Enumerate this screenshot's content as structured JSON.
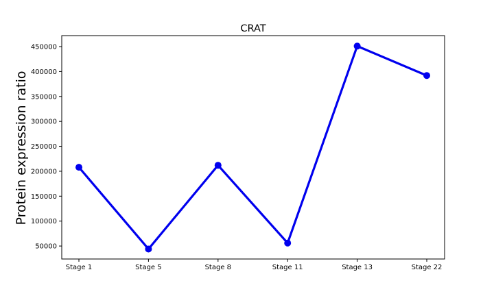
{
  "chart_data": {
    "type": "line",
    "title": "CRAT",
    "xlabel": "",
    "ylabel": "Protein expression ratio",
    "categories": [
      "Stage 1",
      "Stage 5",
      "Stage 8",
      "Stage 11",
      "Stage 13",
      "Stage 22"
    ],
    "series": [
      {
        "values": [
          208000,
          44000,
          212000,
          56000,
          451000,
          392000
        ],
        "color": "#0000ee"
      }
    ],
    "yticks": [
      50000,
      100000,
      150000,
      200000,
      250000,
      300000,
      350000,
      400000,
      450000
    ],
    "ytick_labels": [
      "50000",
      "100000",
      "150000",
      "200000",
      "250000",
      "300000",
      "350000",
      "400000",
      "450000"
    ],
    "ylim": [
      24000,
      472000
    ],
    "grid": false,
    "legend": "none"
  }
}
